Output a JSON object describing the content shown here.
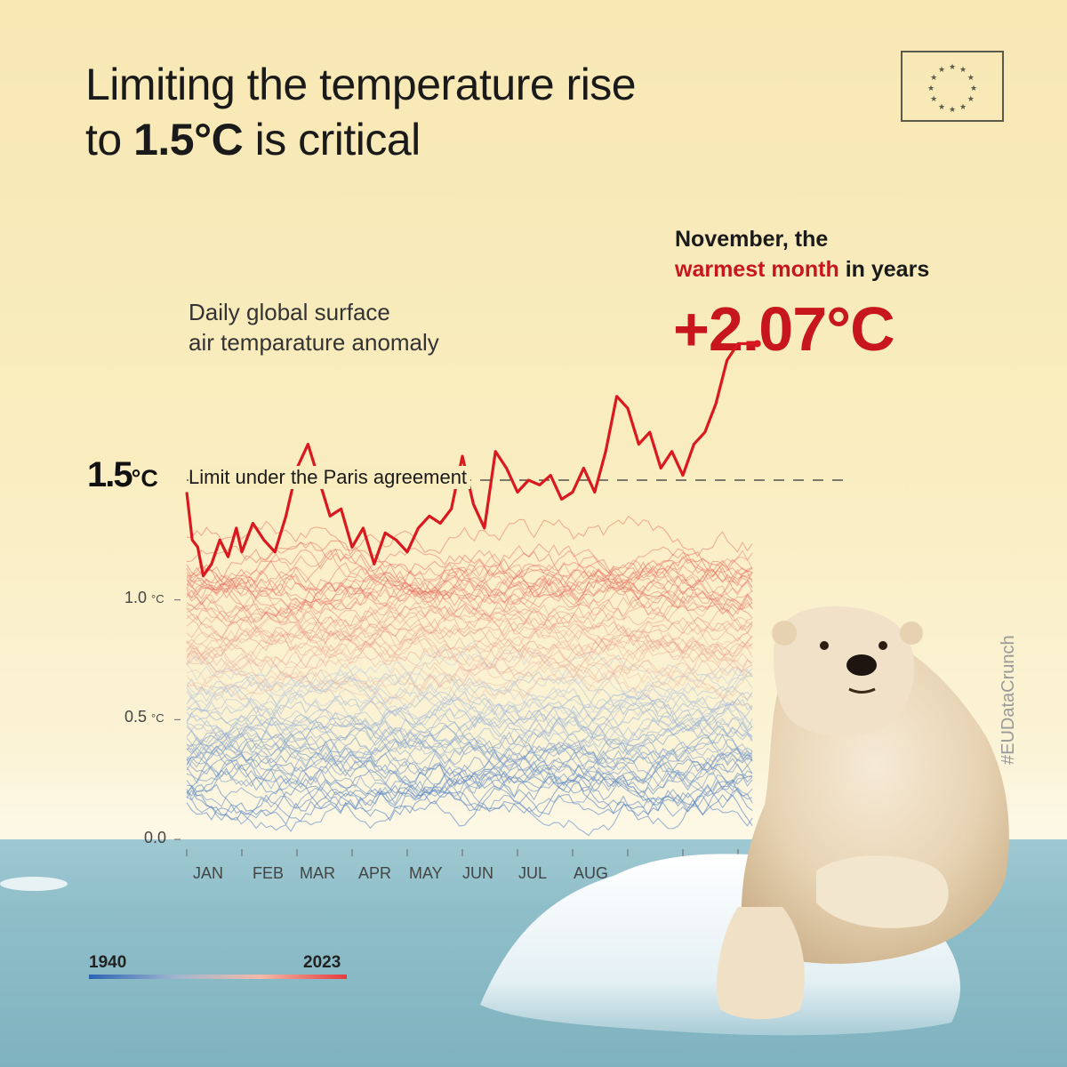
{
  "title": {
    "line1": "Limiting the temperature rise",
    "line2_prefix": "to ",
    "line2_bold": "1.5°C",
    "line2_suffix": " is critical"
  },
  "logo": {
    "name": "EU flag"
  },
  "subtitle": {
    "line1": "Daily global surface",
    "line2": "air temparature anomaly"
  },
  "highlight": {
    "line1": "November, the",
    "red": "warmest month",
    "rest": " in years",
    "value": "+2.07°C"
  },
  "limit": {
    "value": "1.5",
    "unit": "°C",
    "label": "Limit under the Paris agreement"
  },
  "yticks": [
    {
      "value": "1.0",
      "unit": "°C"
    },
    {
      "value": "0.5",
      "unit": "°C"
    },
    {
      "value": "0.0",
      "unit": ""
    }
  ],
  "months": [
    "JAN",
    "FEB",
    "MAR",
    "APR",
    "MAY",
    "JUN",
    "JUL",
    "AUG"
  ],
  "legend": {
    "start": "1940",
    "end": "2023"
  },
  "hashtag": "#EUDataCrunch",
  "colors": {
    "accent": "#c8161d",
    "cold": "#2b63b3",
    "warm": "#e53b3b"
  },
  "chart_data": {
    "type": "line",
    "ylim": [
      0,
      2.2
    ],
    "ylabel": "",
    "threshold": 1.5,
    "series_range": {
      "first_year": 1940,
      "last_year": 2023
    },
    "highlighted_series": {
      "name": "2023",
      "x_months": [
        0,
        0.1,
        0.2,
        0.3,
        0.45,
        0.6,
        0.75,
        0.9,
        1.0,
        1.2,
        1.4,
        1.6,
        1.8,
        2.0,
        2.2,
        2.4,
        2.6,
        2.8,
        3.0,
        3.2,
        3.4,
        3.6,
        3.8,
        4.0,
        4.2,
        4.4,
        4.6,
        4.8,
        5.0,
        5.2,
        5.4,
        5.6,
        5.8,
        6.0,
        6.2,
        6.4,
        6.6,
        6.8,
        7.0,
        7.2,
        7.4,
        7.6,
        7.8,
        8.0,
        8.2,
        8.4,
        8.6,
        8.8,
        9.0,
        9.2,
        9.4,
        9.6,
        9.8,
        10.0,
        10.2,
        10.35
      ],
      "y": [
        1.45,
        1.25,
        1.22,
        1.1,
        1.15,
        1.25,
        1.18,
        1.3,
        1.2,
        1.32,
        1.25,
        1.2,
        1.35,
        1.55,
        1.65,
        1.5,
        1.35,
        1.38,
        1.22,
        1.3,
        1.15,
        1.28,
        1.25,
        1.2,
        1.3,
        1.35,
        1.32,
        1.38,
        1.6,
        1.4,
        1.3,
        1.62,
        1.55,
        1.45,
        1.5,
        1.48,
        1.52,
        1.42,
        1.45,
        1.55,
        1.45,
        1.62,
        1.85,
        1.8,
        1.65,
        1.7,
        1.55,
        1.62,
        1.52,
        1.65,
        1.7,
        1.82,
        2.0,
        2.07,
        2.07,
        2.07
      ]
    }
  }
}
